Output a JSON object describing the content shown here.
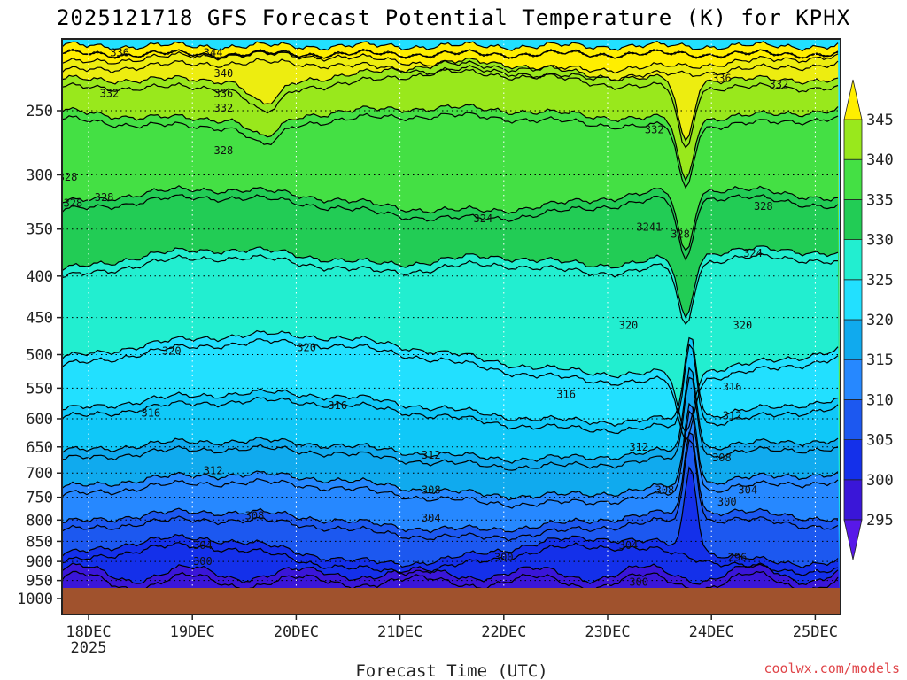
{
  "chart_data": {
    "type": "heatmap",
    "title": "2025121718 GFS Forecast Potential Temperature (K) for KPHX",
    "xlabel": "Forecast Time (UTC)",
    "ylabel": "",
    "x_ticks": [
      "18DEC",
      "19DEC",
      "20DEC",
      "21DEC",
      "22DEC",
      "23DEC",
      "24DEC",
      "25DEC"
    ],
    "x_tick_sublabel": "2025",
    "y_ticks": [
      "250",
      "300",
      "350",
      "400",
      "450",
      "500",
      "550",
      "600",
      "650",
      "700",
      "750",
      "800",
      "850",
      "900",
      "950",
      "1000"
    ],
    "y_unit_values": [
      250,
      300,
      350,
      400,
      450,
      500,
      550,
      600,
      650,
      700,
      750,
      800,
      850,
      900,
      950,
      1000
    ],
    "ylim": [
      200,
      1000
    ],
    "y_scale": "log-pressure (inverted)",
    "colorbar": {
      "levels": [
        "295",
        "300",
        "305",
        "310",
        "315",
        "320",
        "325",
        "330",
        "335",
        "340",
        "345"
      ],
      "colors": [
        "#3a16d8",
        "#1430ea",
        "#1c58f0",
        "#2688ff",
        "#10aaee",
        "#22e0ff",
        "#22eed0",
        "#22cc55",
        "#44e044",
        "#99e81c",
        "#eded10"
      ],
      "under_color": "#5818e8",
      "over_color": "#ffee00",
      "placement": "right"
    },
    "ground_color": "#a0522d",
    "contour_labels": [
      {
        "text": "336",
        "t": 0.3,
        "p": 212
      },
      {
        "text": "344",
        "t": 1.2,
        "p": 212
      },
      {
        "text": "340",
        "t": 1.3,
        "p": 225
      },
      {
        "text": "336",
        "t": 1.3,
        "p": 238
      },
      {
        "text": "332",
        "t": 0.2,
        "p": 238
      },
      {
        "text": "332",
        "t": 1.3,
        "p": 248
      },
      {
        "text": "336",
        "t": 6.1,
        "p": 228
      },
      {
        "text": "332",
        "t": 6.65,
        "p": 232
      },
      {
        "text": "332",
        "t": 5.45,
        "p": 264
      },
      {
        "text": "328",
        "t": 1.3,
        "p": 280
      },
      {
        "text": "328",
        "t": -0.2,
        "p": 302
      },
      {
        "text": "328",
        "t": -0.15,
        "p": 325
      },
      {
        "text": "328",
        "t": 0.15,
        "p": 320
      },
      {
        "text": "328",
        "t": 6.5,
        "p": 328
      },
      {
        "text": "324",
        "t": 3.8,
        "p": 340
      },
      {
        "text": "3241",
        "t": 5.4,
        "p": 348
      },
      {
        "text": "328",
        "t": 5.7,
        "p": 355
      },
      {
        "text": "324",
        "t": 6.4,
        "p": 375
      },
      {
        "text": "320",
        "t": 5.2,
        "p": 460
      },
      {
        "text": "320",
        "t": 6.3,
        "p": 460
      },
      {
        "text": "320",
        "t": 2.1,
        "p": 490
      },
      {
        "text": "320",
        "t": 0.8,
        "p": 495
      },
      {
        "text": "316",
        "t": 0.6,
        "p": 590
      },
      {
        "text": "316",
        "t": 2.4,
        "p": 578
      },
      {
        "text": "316",
        "t": 4.6,
        "p": 560
      },
      {
        "text": "316",
        "t": 6.2,
        "p": 548
      },
      {
        "text": "312",
        "t": 6.2,
        "p": 595
      },
      {
        "text": "312",
        "t": 3.3,
        "p": 665
      },
      {
        "text": "312",
        "t": 5.3,
        "p": 650
      },
      {
        "text": "312",
        "t": 1.2,
        "p": 695
      },
      {
        "text": "308",
        "t": 6.1,
        "p": 670
      },
      {
        "text": "308",
        "t": 3.3,
        "p": 735
      },
      {
        "text": "308",
        "t": 5.55,
        "p": 735
      },
      {
        "text": "308",
        "t": 1.6,
        "p": 790
      },
      {
        "text": "304",
        "t": 6.35,
        "p": 735
      },
      {
        "text": "300",
        "t": 6.15,
        "p": 760
      },
      {
        "text": "304",
        "t": 3.3,
        "p": 795
      },
      {
        "text": "304",
        "t": 5.2,
        "p": 860
      },
      {
        "text": "304",
        "t": 1.1,
        "p": 860
      },
      {
        "text": "300",
        "t": 1.1,
        "p": 900
      },
      {
        "text": "300",
        "t": 4.0,
        "p": 890
      },
      {
        "text": "296",
        "t": 6.25,
        "p": 890
      },
      {
        "text": "300",
        "t": 5.3,
        "p": 955
      }
    ]
  },
  "credit": "coolwx.com/models"
}
